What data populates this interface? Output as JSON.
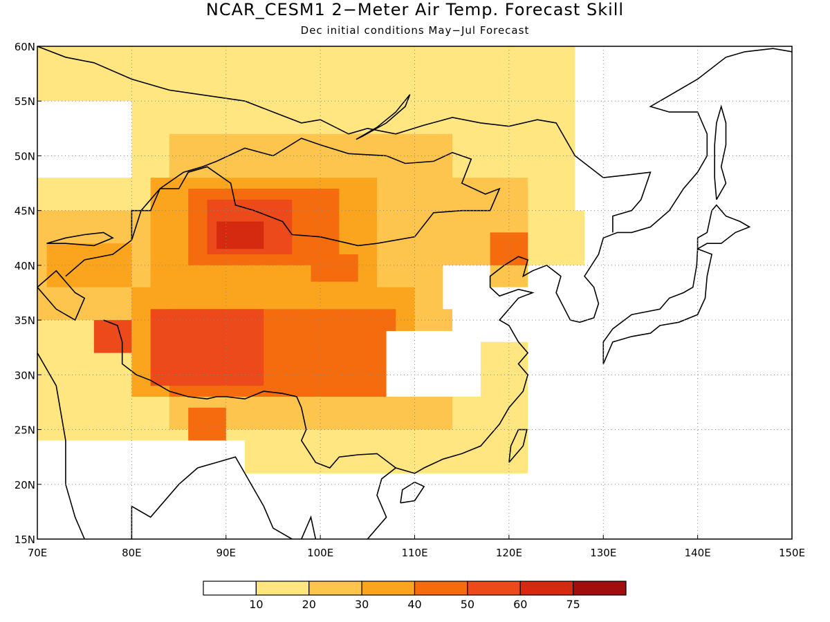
{
  "title": "NCAR_CESM1 2−Meter Air Temp. Forecast Skill",
  "subtitle": "Dec initial conditions   May−Jul Forecast",
  "colors": {
    "level_0": "#ffffff",
    "level_1": "#ffe680",
    "level_2": "#fdc44e",
    "level_3": "#fba51f",
    "level_4": "#f46c0d",
    "level_5": "#ec4a1a",
    "level_6": "#d52a10",
    "level_7": "#a10e0e",
    "coast": "#000000",
    "grid": "#888888"
  },
  "chart_data": {
    "type": "heatmap",
    "xlim": [
      70,
      150
    ],
    "ylim": [
      15,
      60
    ],
    "x_ticks": [
      70,
      80,
      90,
      100,
      110,
      120,
      130,
      140,
      150
    ],
    "x_tick_labels": [
      "70E",
      "80E",
      "90E",
      "100E",
      "110E",
      "120E",
      "130E",
      "140E",
      "150E"
    ],
    "y_ticks": [
      15,
      20,
      25,
      30,
      35,
      40,
      45,
      50,
      55,
      60
    ],
    "y_tick_labels": [
      "15N",
      "20N",
      "25N",
      "30N",
      "35N",
      "40N",
      "45N",
      "50N",
      "55N",
      "60N"
    ],
    "grid": true,
    "colorbar": {
      "boundaries": [
        "10",
        "20",
        "30",
        "40",
        "50",
        "60",
        "75"
      ],
      "num_bins": 8,
      "placement": "bottom"
    },
    "regions": [
      {
        "lon": [
          70,
          150
        ],
        "lat": [
          15,
          60
        ],
        "level": 0
      },
      {
        "lon": [
          70,
          130
        ],
        "lat": [
          55,
          60
        ],
        "level": 1
      },
      {
        "lon": [
          80,
          128
        ],
        "lat": [
          40,
          55
        ],
        "level": 1
      },
      {
        "lon": [
          70,
          110
        ],
        "lat": [
          24,
          48
        ],
        "level": 1
      },
      {
        "lon": [
          92,
          122
        ],
        "lat": [
          21,
          33
        ],
        "level": 1
      },
      {
        "lon": [
          84,
          114
        ],
        "lat": [
          25,
          52
        ],
        "level": 2
      },
      {
        "lon": [
          70,
          86
        ],
        "lat": [
          35,
          45
        ],
        "level": 2
      },
      {
        "lon": [
          108,
          122
        ],
        "lat": [
          38,
          48
        ],
        "level": 2
      },
      {
        "lon": [
          80,
          110
        ],
        "lat": [
          28,
          38
        ],
        "level": 3
      },
      {
        "lon": [
          82,
          106
        ],
        "lat": [
          38,
          48
        ],
        "level": 3
      },
      {
        "lon": [
          84,
          108
        ],
        "lat": [
          28,
          36
        ],
        "level": 4
      },
      {
        "lon": [
          86,
          102
        ],
        "lat": [
          40,
          47
        ],
        "level": 4
      },
      {
        "lon": [
          82,
          94
        ],
        "lat": [
          29,
          36
        ],
        "level": 5
      },
      {
        "lon": [
          88,
          97
        ],
        "lat": [
          41,
          46
        ],
        "level": 5
      },
      {
        "lon": [
          89,
          94
        ],
        "lat": [
          41.5,
          44
        ],
        "level": 6
      },
      {
        "lon": [
          76,
          80
        ],
        "lat": [
          32,
          35
        ],
        "level": 5
      },
      {
        "lon": [
          71,
          80
        ],
        "lat": [
          38,
          42
        ],
        "level": 3
      },
      {
        "lon": [
          99,
          104
        ],
        "lat": [
          38.5,
          41
        ],
        "level": 4
      },
      {
        "lon": [
          86,
          90
        ],
        "lat": [
          24,
          27
        ],
        "level": 4
      },
      {
        "lon": [
          118,
          122
        ],
        "lat": [
          40,
          43
        ],
        "level": 4
      },
      {
        "lon": [
          127,
          145
        ],
        "lat": [
          45,
          60
        ],
        "level": 0
      },
      {
        "lon": [
          107,
          117
        ],
        "lat": [
          28,
          34
        ],
        "level": 0
      },
      {
        "lon": [
          113,
          118
        ],
        "lat": [
          36,
          40
        ],
        "level": 0
      }
    ]
  }
}
